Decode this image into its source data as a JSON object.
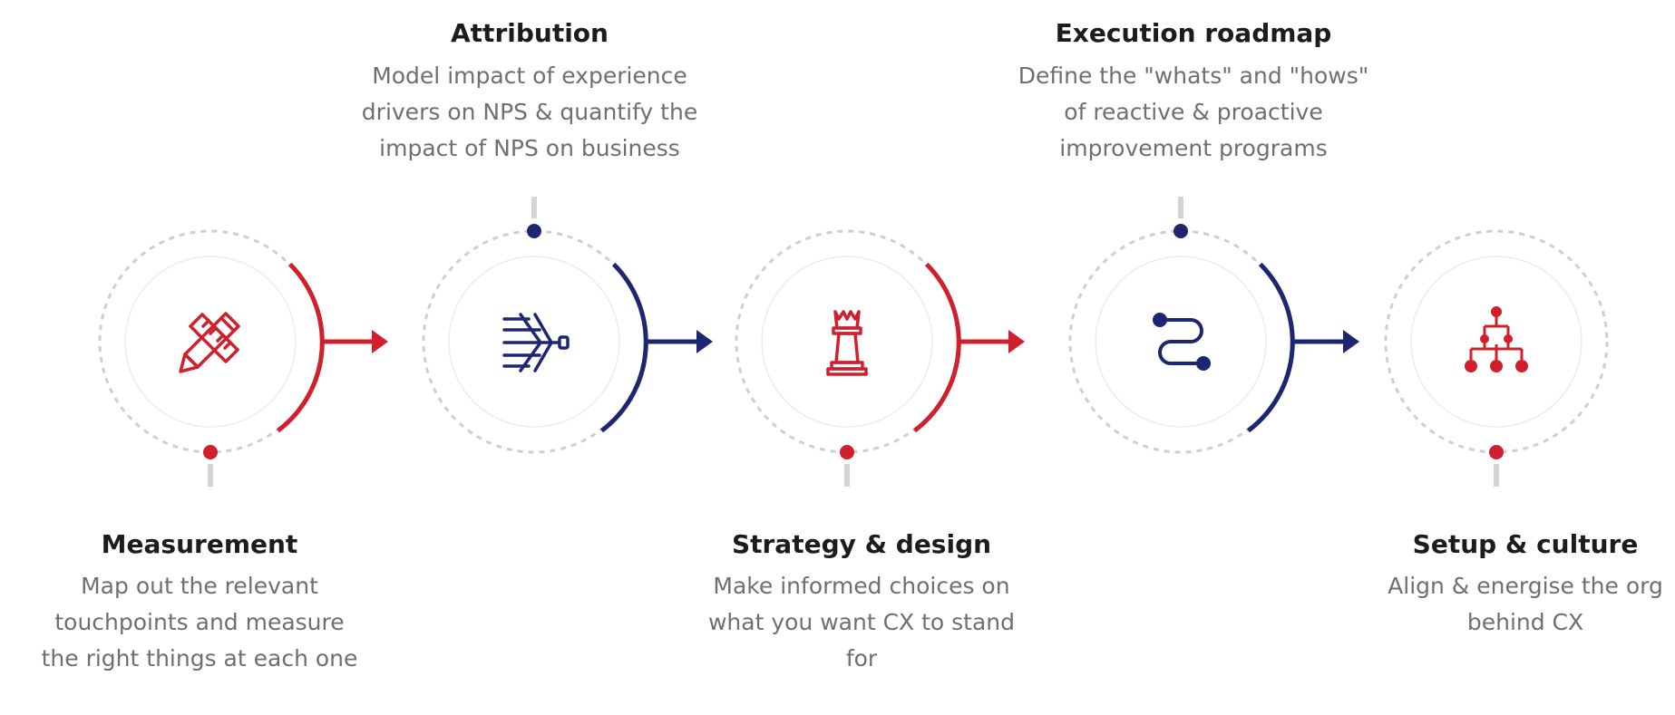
{
  "colors": {
    "red": "#d0202e",
    "navy": "#1d2670",
    "dash": "#cfcfcf",
    "inner_ring": "#ececec",
    "stem": "#d4d4d4",
    "title": "#1c1c1c",
    "text": "#6f6f6f"
  },
  "steps": [
    {
      "id": "measurement",
      "title": "Measurement",
      "description": [
        "Map out the relevant",
        "touchpoints and measure",
        "the right things at each one"
      ],
      "icon": "pencil-ruler-icon",
      "accent": "red",
      "label_position": "bottom"
    },
    {
      "id": "attribution",
      "title": "Attribution",
      "description": [
        "Model impact of experience",
        "drivers on NPS & quantify the",
        "impact of NPS on business"
      ],
      "icon": "driver-tree-icon",
      "accent": "navy",
      "label_position": "top"
    },
    {
      "id": "strategy",
      "title": "Strategy & design",
      "description": [
        "Make informed choices on",
        "what you want CX to stand",
        "for"
      ],
      "icon": "chess-king-icon",
      "accent": "red",
      "label_position": "bottom"
    },
    {
      "id": "execution",
      "title": "Execution roadmap",
      "description": [
        "Define the \"whats\" and \"hows\"",
        "of reactive & proactive",
        "improvement programs"
      ],
      "icon": "route-path-icon",
      "accent": "navy",
      "label_position": "top"
    },
    {
      "id": "setup",
      "title": "Setup & culture",
      "description": [
        "Align & energise the org",
        "behind CX"
      ],
      "icon": "org-chart-icon",
      "accent": "red",
      "label_position": "bottom"
    }
  ]
}
